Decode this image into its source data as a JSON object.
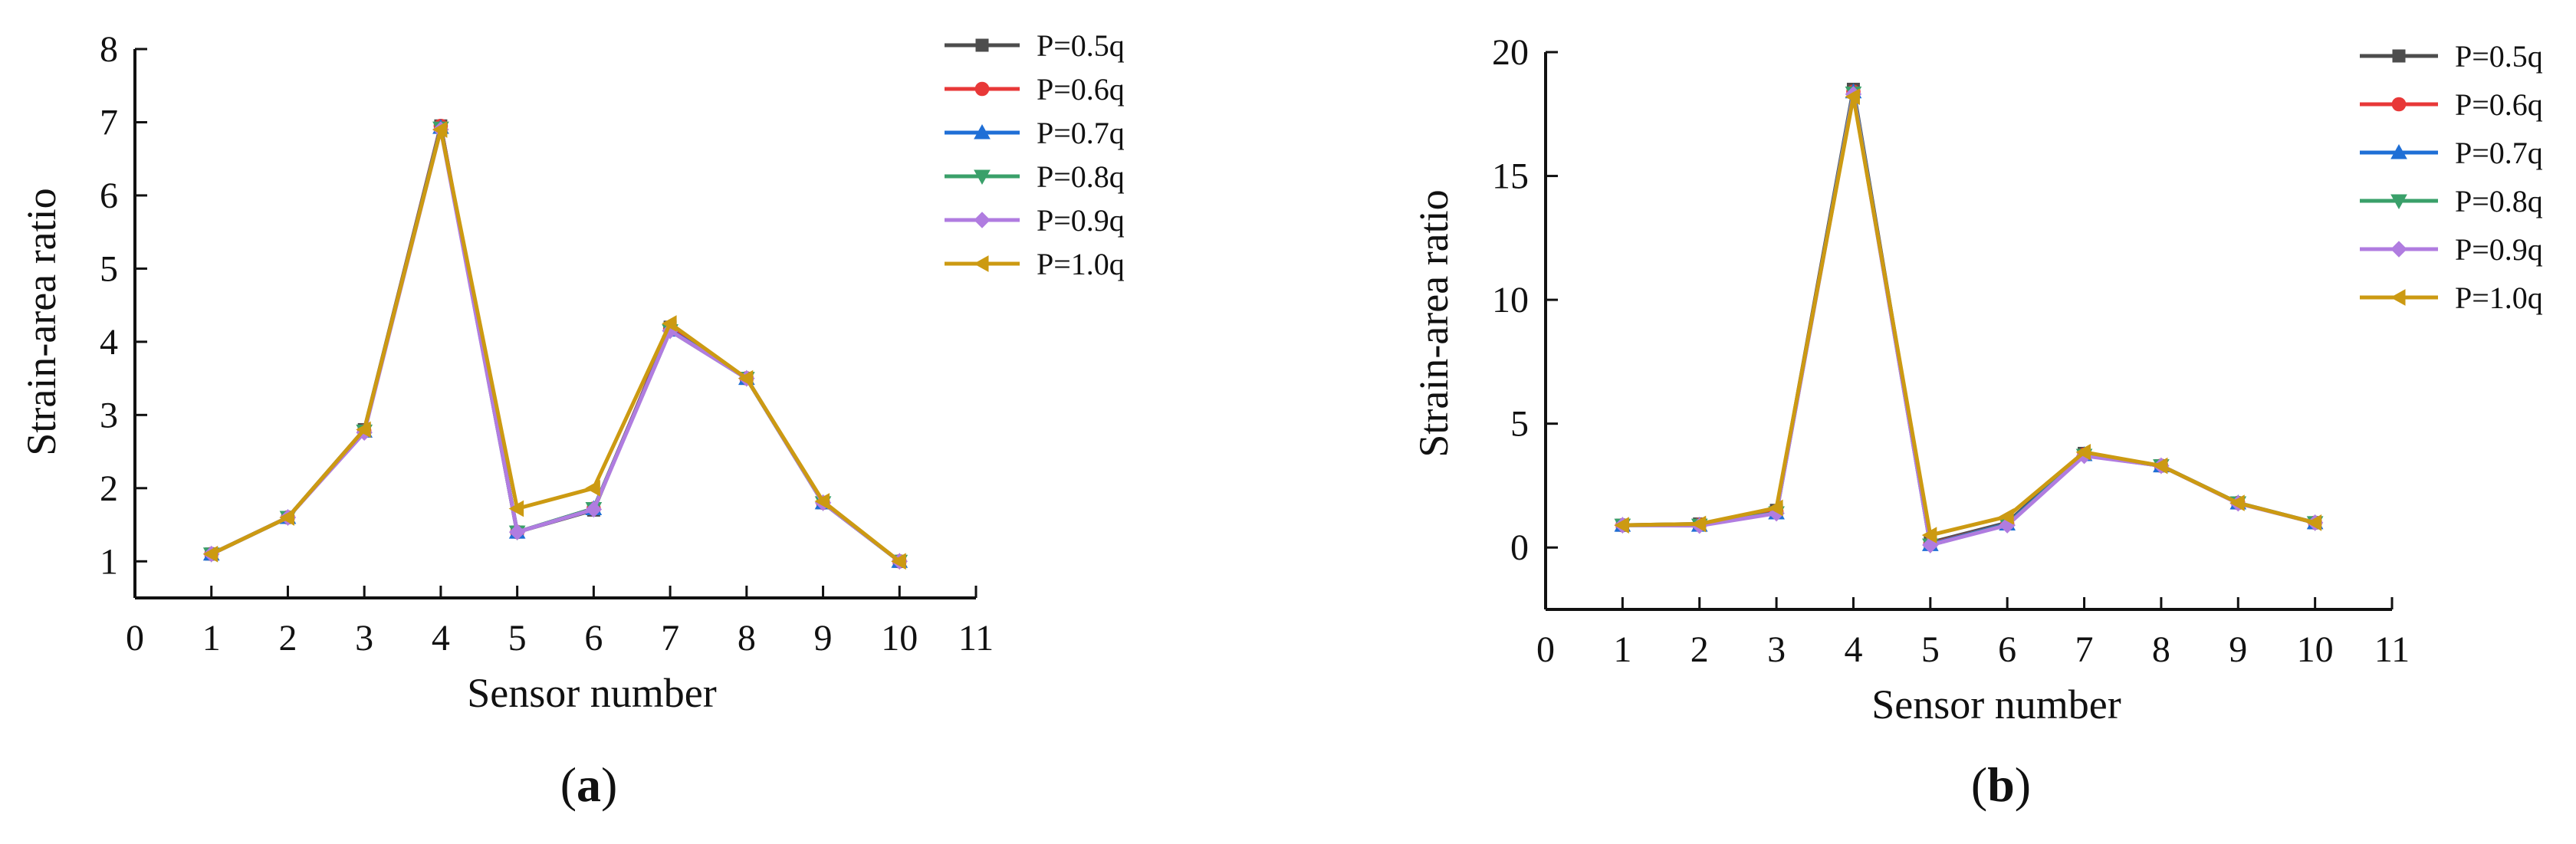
{
  "figure": {
    "panels": [
      {
        "prefix": "(",
        "letter": "a",
        "suffix": ")"
      },
      {
        "prefix": "(",
        "letter": "b",
        "suffix": ")"
      }
    ]
  },
  "chart_data": [
    {
      "type": "line",
      "panel": "a",
      "xlabel": "Sensor number",
      "ylabel": "Strain-area ratio",
      "xlim": [
        0,
        11
      ],
      "ylim": [
        0.5,
        8
      ],
      "xticks": [
        0,
        1,
        2,
        3,
        4,
        5,
        6,
        7,
        8,
        9,
        10,
        11
      ],
      "yticks": [
        1,
        2,
        3,
        4,
        5,
        6,
        7,
        8
      ],
      "x": [
        1,
        2,
        3,
        4,
        5,
        6,
        7,
        8,
        9,
        10
      ],
      "legend_position": "top-right",
      "grid": false,
      "series": [
        {
          "name": "P=0.5q",
          "color": "#4d4d4d",
          "marker": "square",
          "values": [
            1.1,
            1.6,
            2.8,
            6.95,
            1.4,
            1.7,
            4.2,
            3.5,
            1.8,
            1.0
          ]
        },
        {
          "name": "P=0.6q",
          "color": "#e83838",
          "marker": "circle",
          "values": [
            1.1,
            1.6,
            2.78,
            6.95,
            1.4,
            1.72,
            4.18,
            3.5,
            1.8,
            1.0
          ]
        },
        {
          "name": "P=0.7q",
          "color": "#1f6fd6",
          "marker": "triangle-up",
          "values": [
            1.1,
            1.6,
            2.78,
            6.93,
            1.4,
            1.72,
            4.16,
            3.5,
            1.8,
            1.0
          ]
        },
        {
          "name": "P=0.8q",
          "color": "#3aa06a",
          "marker": "triangle-down",
          "values": [
            1.1,
            1.6,
            2.78,
            6.92,
            1.4,
            1.72,
            4.15,
            3.5,
            1.8,
            1.0
          ]
        },
        {
          "name": "P=0.9q",
          "color": "#b07ce0",
          "marker": "diamond",
          "values": [
            1.1,
            1.6,
            2.76,
            6.9,
            1.4,
            1.71,
            4.15,
            3.5,
            1.8,
            1.0
          ]
        },
        {
          "name": "P=1.0q",
          "color": "#cc9a12",
          "marker": "triangle-left",
          "values": [
            1.1,
            1.6,
            2.8,
            6.9,
            1.72,
            2.0,
            4.25,
            3.5,
            1.82,
            1.0
          ]
        }
      ]
    },
    {
      "type": "line",
      "panel": "b",
      "xlabel": "Sensor number",
      "ylabel": "Strain-area ratio",
      "xlim": [
        0,
        11
      ],
      "ylim": [
        -2.5,
        20
      ],
      "xticks": [
        0,
        1,
        2,
        3,
        4,
        5,
        6,
        7,
        8,
        9,
        10,
        11
      ],
      "yticks": [
        0,
        5,
        10,
        15,
        20
      ],
      "x": [
        1,
        2,
        3,
        4,
        5,
        6,
        7,
        8,
        9,
        10
      ],
      "legend_position": "top-right",
      "grid": false,
      "series": [
        {
          "name": "P=0.5q",
          "color": "#4d4d4d",
          "marker": "square",
          "values": [
            0.9,
            0.95,
            1.5,
            18.5,
            0.2,
            1.0,
            3.8,
            3.3,
            1.8,
            1.0
          ]
        },
        {
          "name": "P=0.6q",
          "color": "#e83838",
          "marker": "circle",
          "values": [
            0.9,
            0.92,
            1.45,
            18.4,
            0.15,
            0.95,
            3.75,
            3.3,
            1.8,
            1.0
          ]
        },
        {
          "name": "P=0.7q",
          "color": "#1f6fd6",
          "marker": "triangle-up",
          "values": [
            0.9,
            0.9,
            1.4,
            18.4,
            0.12,
            0.95,
            3.75,
            3.3,
            1.8,
            1.0
          ]
        },
        {
          "name": "P=0.8q",
          "color": "#3aa06a",
          "marker": "triangle-down",
          "values": [
            0.9,
            0.9,
            1.4,
            18.35,
            0.1,
            0.92,
            3.72,
            3.3,
            1.8,
            1.0
          ]
        },
        {
          "name": "P=0.9q",
          "color": "#b07ce0",
          "marker": "diamond",
          "values": [
            0.9,
            0.88,
            1.38,
            18.3,
            0.1,
            0.9,
            3.7,
            3.3,
            1.78,
            1.0
          ]
        },
        {
          "name": "P=1.0q",
          "color": "#cc9a12",
          "marker": "triangle-left",
          "values": [
            0.9,
            0.95,
            1.6,
            18.2,
            0.5,
            1.25,
            3.85,
            3.3,
            1.8,
            1.0
          ]
        }
      ]
    }
  ]
}
